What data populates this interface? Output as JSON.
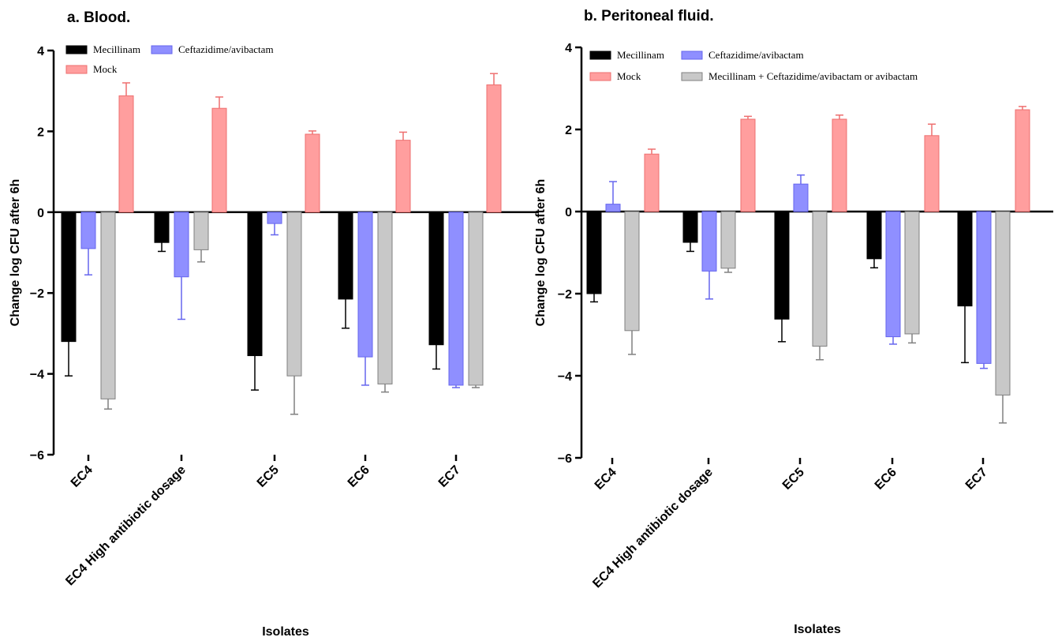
{
  "colors": {
    "Mecillinam": "#000000",
    "Ceftazidime/avibactam": "#8f8fff",
    "Mock": "#ff9e9e",
    "Combination": "#c8c8c8"
  },
  "chart_data": [
    {
      "type": "bar",
      "title": "a. Blood.",
      "xlabel": "Isolates",
      "ylabel": "Change log CFU after 6h",
      "ylim": [
        -6,
        4
      ],
      "yticks": [
        4,
        2,
        0,
        -2,
        -4,
        -6
      ],
      "ytick_labels": [
        "4",
        "2",
        "0",
        "−2",
        "−4",
        "−6"
      ],
      "legend": [
        "Mecillinam",
        "Ceftazidime/avibactam",
        "Mock"
      ],
      "categories": [
        "EC4",
        "EC4 High antibiotic dosage",
        "EC5",
        "EC6",
        "EC7"
      ],
      "series": [
        {
          "name": "Mecillinam",
          "values": [
            -3.2,
            -0.75,
            -3.55,
            -2.15,
            -3.28
          ],
          "errors": [
            0.85,
            0.22,
            0.85,
            0.72,
            0.6
          ]
        },
        {
          "name": "Ceftazidime/avibactam",
          "values": [
            -0.9,
            -1.6,
            -0.28,
            -3.58,
            -4.28
          ],
          "errors": [
            0.65,
            1.05,
            0.28,
            0.7,
            0.06
          ]
        },
        {
          "name": null,
          "values": [
            -4.62,
            -0.93,
            -4.05,
            -4.25,
            -4.28
          ],
          "errors": [
            0.25,
            0.3,
            0.95,
            0.2,
            0.06
          ]
        },
        {
          "name": "Mock",
          "values": [
            2.88,
            2.57,
            1.93,
            1.78,
            3.15
          ],
          "errors": [
            0.32,
            0.28,
            0.08,
            0.2,
            0.28
          ]
        }
      ]
    },
    {
      "type": "bar",
      "title": "b. Peritoneal fluid.",
      "xlabel": "Isolates",
      "ylabel": "Change log CFU after 6h",
      "ylim": [
        -6,
        4
      ],
      "yticks": [
        4,
        2,
        0,
        -2,
        -4,
        -6
      ],
      "ytick_labels": [
        "4",
        "2",
        "0",
        "−2",
        "−4",
        "−6"
      ],
      "legend": [
        "Mecillinam",
        "Ceftazidime/avibactam",
        "Mock",
        "Mecillinam + Ceftazidime/avibactam or avibactam"
      ],
      "categories": [
        "EC4",
        "EC4 High antibiotic dosage",
        "EC5",
        "EC6",
        "EC7"
      ],
      "series": [
        {
          "name": "Mecillinam",
          "values": [
            -2.0,
            -0.75,
            -2.62,
            -1.15,
            -2.3
          ],
          "errors": [
            0.2,
            0.22,
            0.55,
            0.22,
            1.38
          ]
        },
        {
          "name": "Ceftazidime/avibactam",
          "values": [
            0.18,
            -1.45,
            0.67,
            -3.05,
            -3.7
          ],
          "errors": [
            0.55,
            0.68,
            0.22,
            0.18,
            0.12
          ]
        },
        {
          "name": "Mecillinam + Ceftazidime/avibactam or avibactam",
          "values": [
            -2.9,
            -1.38,
            -3.28,
            -2.98,
            -4.47
          ],
          "errors": [
            0.58,
            0.1,
            0.33,
            0.22,
            0.68
          ]
        },
        {
          "name": "Mock",
          "values": [
            1.4,
            2.25,
            2.25,
            1.85,
            2.48
          ],
          "errors": [
            0.12,
            0.07,
            0.1,
            0.28,
            0.08
          ]
        }
      ]
    }
  ]
}
